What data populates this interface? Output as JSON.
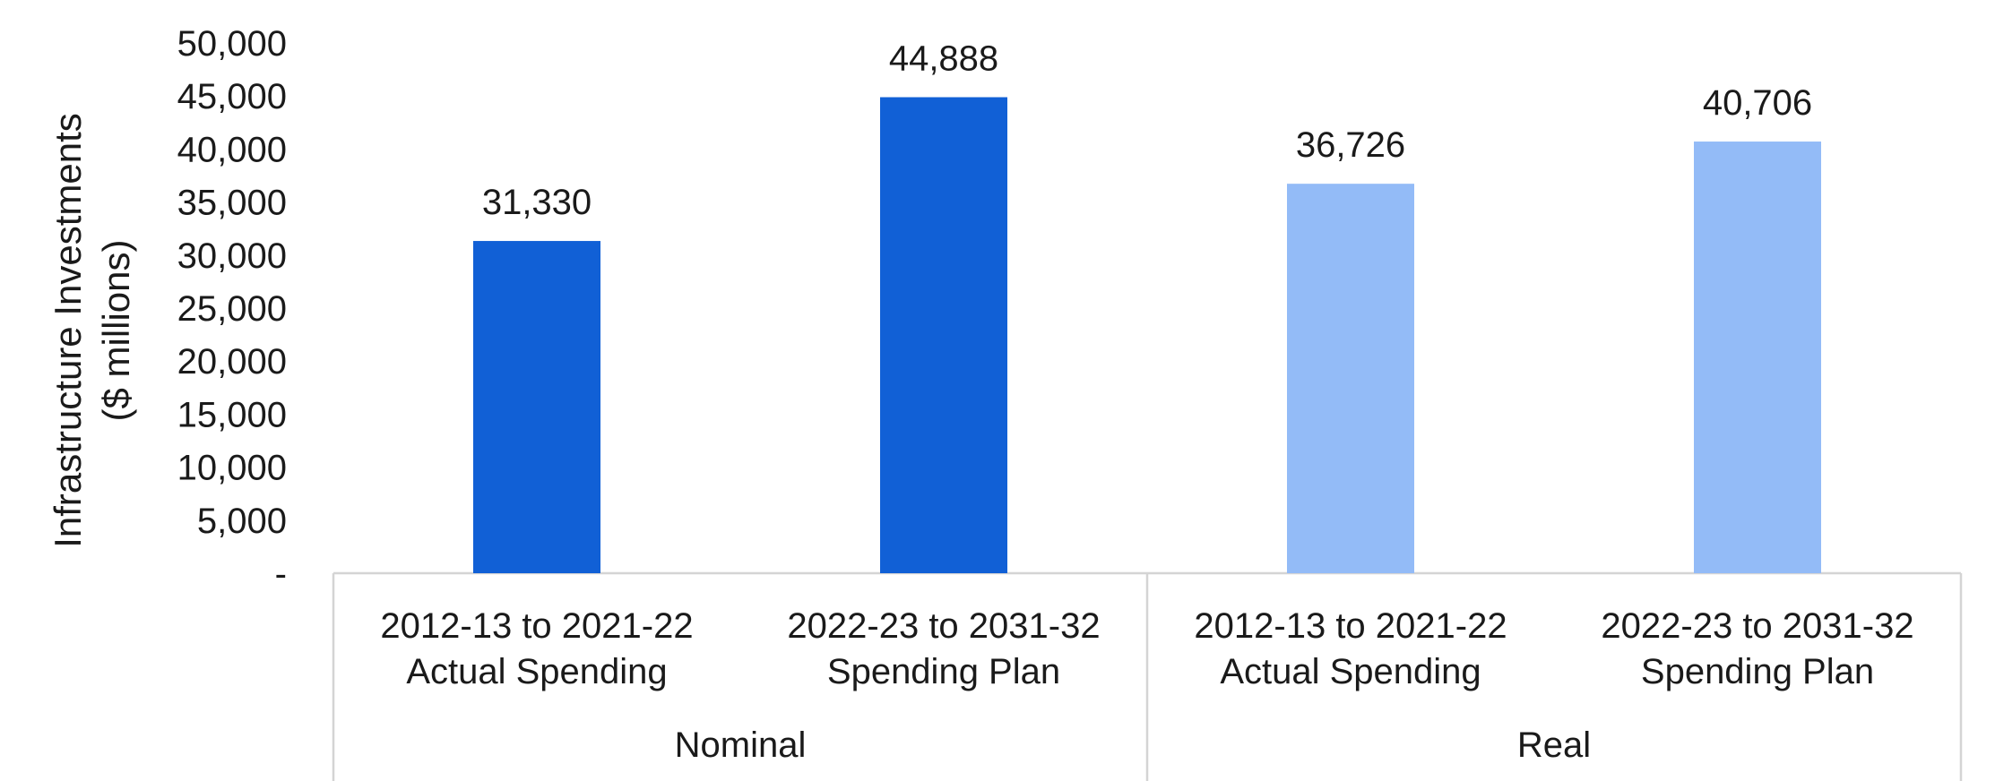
{
  "chart_data": {
    "type": "bar",
    "ylabel_lines": [
      "Infrastructure Investments",
      "($ millions)"
    ],
    "ylim": [
      0,
      50000
    ],
    "yticks": [
      0,
      5000,
      10000,
      15000,
      20000,
      25000,
      30000,
      35000,
      40000,
      45000,
      50000
    ],
    "ytick_labels": [
      "-",
      "5,000",
      "10,000",
      "15,000",
      "20,000",
      "25,000",
      "30,000",
      "35,000",
      "40,000",
      "45,000",
      "50,000"
    ],
    "grid": false,
    "groups": [
      "Nominal",
      "Real"
    ],
    "bars": [
      {
        "group": "Nominal",
        "category_lines": [
          "2012-13 to 2021-22",
          "Actual Spending"
        ],
        "value": 31330,
        "label": "31,330",
        "color": "#1160D6"
      },
      {
        "group": "Nominal",
        "category_lines": [
          "2022-23 to 2031-32",
          "Spending Plan"
        ],
        "value": 44888,
        "label": "44,888",
        "color": "#1160D6"
      },
      {
        "group": "Real",
        "category_lines": [
          "2012-13 to 2021-22",
          "Actual Spending"
        ],
        "value": 36726,
        "label": "36,726",
        "color": "#93BBF7"
      },
      {
        "group": "Real",
        "category_lines": [
          "2022-23 to 2031-32",
          "Spending Plan"
        ],
        "value": 40706,
        "label": "40,706",
        "color": "#93BBF7"
      }
    ]
  }
}
